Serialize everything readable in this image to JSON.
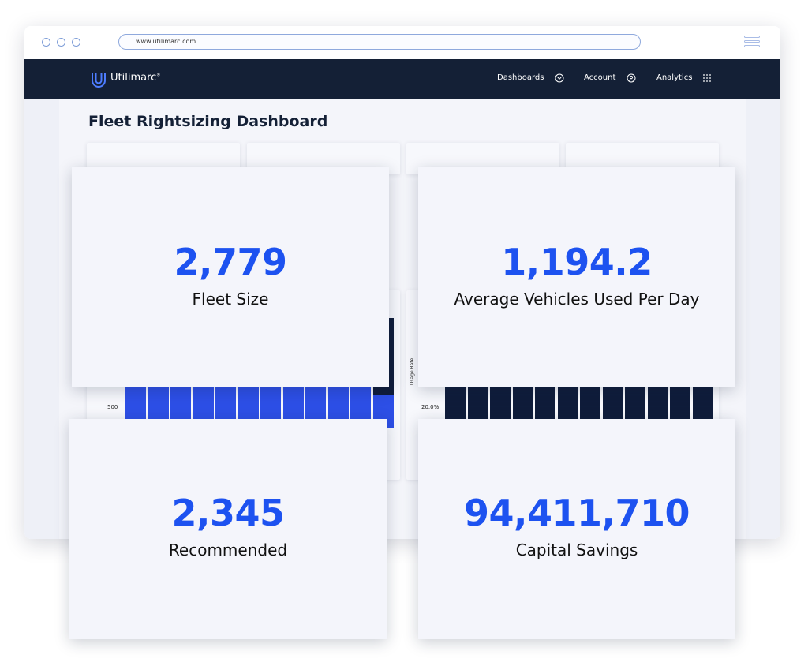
{
  "browser": {
    "url": "www.utilimarc.com"
  },
  "nav": {
    "brand": "Utilimarc",
    "items": [
      {
        "label": "Dashboards",
        "icon": "chevron-circle-icon"
      },
      {
        "label": "Account",
        "icon": "user-circle-icon"
      },
      {
        "label": "Analytics",
        "icon": "grid-dots-icon"
      }
    ]
  },
  "page": {
    "title": "Fleet Rightsizing Dashboard"
  },
  "stats": [
    {
      "value": "2,779",
      "label": "Fleet Size"
    },
    {
      "value": "1,194.2",
      "label": "Average Vehicles Used Per Day"
    },
    {
      "value": "2,345",
      "label": "Recommended"
    },
    {
      "value": "94,411,710",
      "label": "Capital Savings"
    }
  ],
  "charts": {
    "left": {
      "tick_label": "500",
      "color": "#2d4fe6",
      "bar_count": 12
    },
    "right": {
      "tick_label": "20.0%",
      "axis_label": "Usage Rate",
      "color": "#0f1c3a",
      "bar_count": 12
    }
  },
  "colors": {
    "accent": "#1d52f0",
    "navbar": "#142036"
  }
}
